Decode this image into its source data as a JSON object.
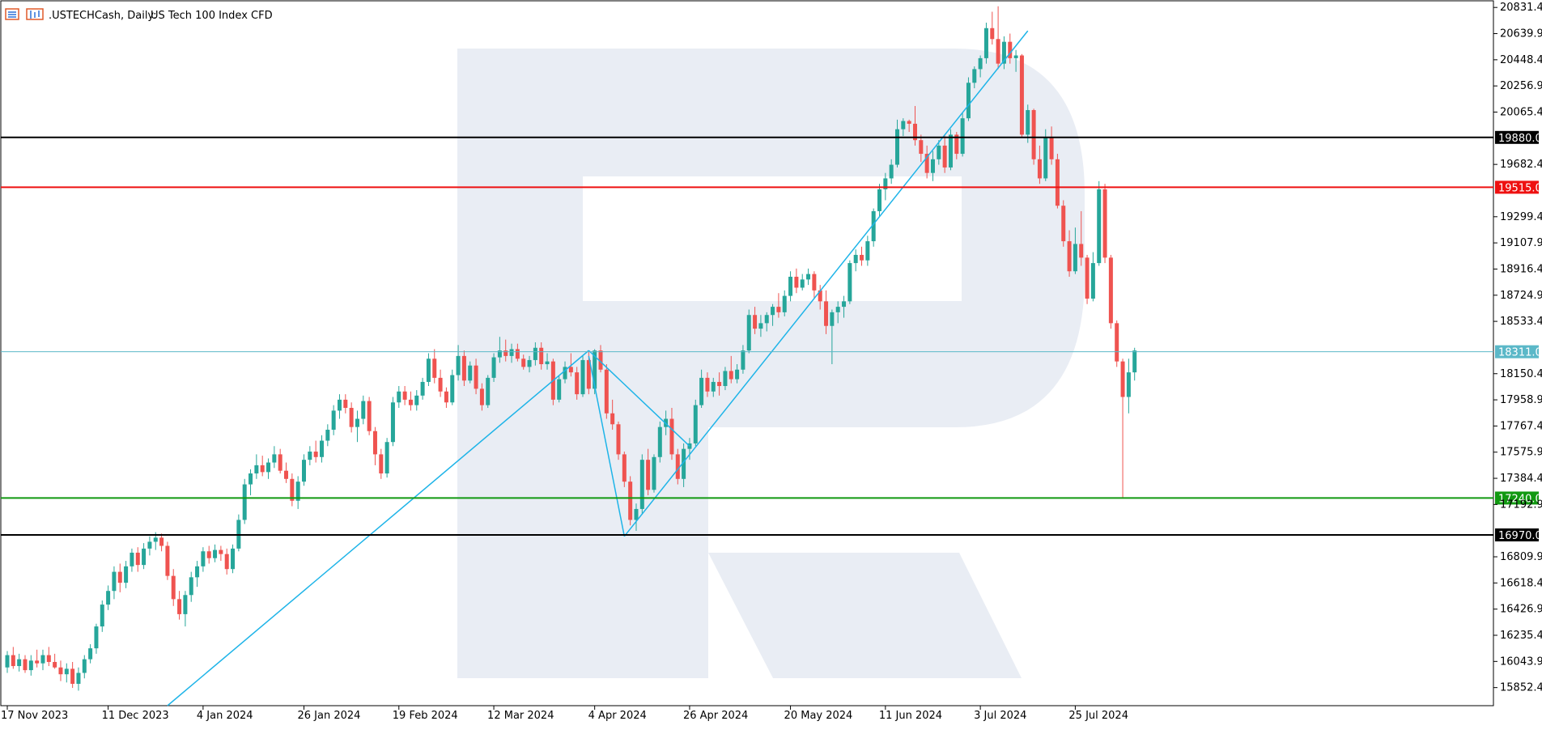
{
  "header": {
    "symbol": ".USTECHCash, Daily:",
    "description": "US Tech 100 Index CFD"
  },
  "chart_data": {
    "type": "candlestick",
    "title": ".USTECHCash, Daily:",
    "subtitle": "US Tech 100 Index CFD",
    "y_range": [
      15720,
      20880
    ],
    "y_ticks": [
      20831.4,
      20639.9,
      20448.4,
      20256.9,
      20065.4,
      19682.4,
      19299.4,
      19107.9,
      18916.4,
      18724.9,
      18533.4,
      18150.4,
      17958.9,
      17767.4,
      17575.9,
      17384.4,
      17192.9,
      16809.9,
      16618.4,
      16426.9,
      16235.4,
      16043.9,
      15852.4
    ],
    "x_labels": [
      {
        "label": "17 Nov 2023",
        "bar": 0
      },
      {
        "label": "11 Dec 2023",
        "bar": 17
      },
      {
        "label": "4 Jan 2024",
        "bar": 33
      },
      {
        "label": "26 Jan 2024",
        "bar": 50
      },
      {
        "label": "19 Feb 2024",
        "bar": 66
      },
      {
        "label": "12 Mar 2024",
        "bar": 82
      },
      {
        "label": "4 Apr 2024",
        "bar": 99
      },
      {
        "label": "26 Apr 2024",
        "bar": 115
      },
      {
        "label": "20 May 2024",
        "bar": 132
      },
      {
        "label": "11 Jun 2024",
        "bar": 148
      },
      {
        "label": "3 Jul 2024",
        "bar": 164
      },
      {
        "label": "25 Jul 2024",
        "bar": 180
      }
    ],
    "levels": [
      {
        "label": "19880.0",
        "value": 19880.0,
        "color": "#000000"
      },
      {
        "label": "19515.0",
        "value": 19515.0,
        "color": "#ee1111"
      },
      {
        "label": "18311.0",
        "value": 18311.0,
        "color": "#5bb8c8"
      },
      {
        "label": "17240.0",
        "value": 17240.0,
        "color": "#119911"
      },
      {
        "label": "16970.0",
        "value": 16970.0,
        "color": "#000000"
      }
    ],
    "trendlines": [
      {
        "from": [
          27,
          15720
        ],
        "to": [
          98,
          18320
        ]
      },
      {
        "from": [
          98,
          18320
        ],
        "to": [
          115,
          17620
        ]
      },
      {
        "from": [
          104,
          16960
        ],
        "to": [
          172,
          20660
        ]
      },
      {
        "from": [
          98,
          18280
        ],
        "to": [
          104,
          16960
        ]
      }
    ],
    "colors": {
      "bull": "#26a69a",
      "bear": "#ef5350",
      "trend": "#1eb4e8",
      "watermark": "#e9edf4"
    },
    "ohlc": [
      [
        16000,
        16120,
        15960,
        16090
      ],
      [
        16090,
        16150,
        15990,
        16010
      ],
      [
        16010,
        16100,
        15970,
        16060
      ],
      [
        16060,
        16090,
        15960,
        15980
      ],
      [
        15980,
        16090,
        15940,
        16050
      ],
      [
        16050,
        16130,
        16000,
        16030
      ],
      [
        16030,
        16130,
        15980,
        16090
      ],
      [
        16090,
        16150,
        16010,
        16040
      ],
      [
        16040,
        16100,
        15990,
        16000
      ],
      [
        16000,
        16050,
        15900,
        15950
      ],
      [
        15950,
        16030,
        15890,
        15990
      ],
      [
        15990,
        16040,
        15850,
        15880
      ],
      [
        15880,
        16000,
        15830,
        15960
      ],
      [
        15960,
        16090,
        15920,
        16060
      ],
      [
        16060,
        16170,
        16030,
        16140
      ],
      [
        16140,
        16320,
        16100,
        16300
      ],
      [
        16300,
        16490,
        16260,
        16460
      ],
      [
        16460,
        16600,
        16420,
        16560
      ],
      [
        16560,
        16740,
        16500,
        16700
      ],
      [
        16700,
        16760,
        16550,
        16620
      ],
      [
        16620,
        16780,
        16580,
        16740
      ],
      [
        16740,
        16870,
        16700,
        16840
      ],
      [
        16840,
        16880,
        16700,
        16750
      ],
      [
        16750,
        16910,
        16720,
        16870
      ],
      [
        16870,
        16960,
        16820,
        16920
      ],
      [
        16920,
        16990,
        16860,
        16950
      ],
      [
        16950,
        16980,
        16850,
        16890
      ],
      [
        16890,
        16920,
        16640,
        16670
      ],
      [
        16670,
        16720,
        16450,
        16500
      ],
      [
        16500,
        16560,
        16350,
        16390
      ],
      [
        16390,
        16560,
        16300,
        16530
      ],
      [
        16530,
        16700,
        16480,
        16660
      ],
      [
        16660,
        16780,
        16590,
        16740
      ],
      [
        16740,
        16880,
        16700,
        16850
      ],
      [
        16850,
        16890,
        16760,
        16800
      ],
      [
        16800,
        16900,
        16770,
        16860
      ],
      [
        16860,
        16890,
        16780,
        16830
      ],
      [
        16830,
        16870,
        16680,
        16720
      ],
      [
        16720,
        16900,
        16690,
        16870
      ],
      [
        16870,
        17120,
        16850,
        17080
      ],
      [
        17080,
        17380,
        17050,
        17340
      ],
      [
        17340,
        17450,
        17260,
        17420
      ],
      [
        17420,
        17560,
        17380,
        17480
      ],
      [
        17480,
        17550,
        17400,
        17430
      ],
      [
        17430,
        17530,
        17380,
        17500
      ],
      [
        17500,
        17620,
        17460,
        17560
      ],
      [
        17560,
        17600,
        17420,
        17440
      ],
      [
        17440,
        17500,
        17350,
        17380
      ],
      [
        17380,
        17420,
        17180,
        17220
      ],
      [
        17220,
        17400,
        17160,
        17360
      ],
      [
        17360,
        17560,
        17330,
        17520
      ],
      [
        17520,
        17620,
        17480,
        17580
      ],
      [
        17580,
        17660,
        17500,
        17540
      ],
      [
        17540,
        17700,
        17500,
        17660
      ],
      [
        17660,
        17780,
        17620,
        17740
      ],
      [
        17740,
        17920,
        17700,
        17880
      ],
      [
        17880,
        18000,
        17820,
        17960
      ],
      [
        17960,
        18000,
        17860,
        17900
      ],
      [
        17900,
        17940,
        17720,
        17760
      ],
      [
        17760,
        17880,
        17650,
        17820
      ],
      [
        17820,
        17990,
        17780,
        17950
      ],
      [
        17950,
        17980,
        17700,
        17730
      ],
      [
        17730,
        17760,
        17480,
        17560
      ],
      [
        17560,
        17600,
        17380,
        17420
      ],
      [
        17420,
        17680,
        17390,
        17650
      ],
      [
        17650,
        17980,
        17620,
        17940
      ],
      [
        17940,
        18060,
        17900,
        18020
      ],
      [
        18020,
        18060,
        17920,
        17960
      ],
      [
        17960,
        18020,
        17880,
        17920
      ],
      [
        17920,
        18030,
        17880,
        17990
      ],
      [
        17990,
        18120,
        17960,
        18090
      ],
      [
        18090,
        18300,
        18060,
        18260
      ],
      [
        18260,
        18330,
        18080,
        18120
      ],
      [
        18120,
        18180,
        17980,
        18020
      ],
      [
        18020,
        18050,
        17900,
        17940
      ],
      [
        17940,
        18180,
        17920,
        18140
      ],
      [
        18140,
        18360,
        18100,
        18280
      ],
      [
        18280,
        18320,
        18060,
        18100
      ],
      [
        18100,
        18240,
        18080,
        18210
      ],
      [
        18210,
        18260,
        18000,
        18040
      ],
      [
        18040,
        18080,
        17880,
        17920
      ],
      [
        17920,
        18140,
        17900,
        18120
      ],
      [
        18120,
        18300,
        18090,
        18270
      ],
      [
        18270,
        18420,
        18230,
        18320
      ],
      [
        18320,
        18400,
        18240,
        18280
      ],
      [
        18280,
        18370,
        18230,
        18330
      ],
      [
        18330,
        18370,
        18240,
        18260
      ],
      [
        18260,
        18290,
        18180,
        18200
      ],
      [
        18200,
        18280,
        18160,
        18250
      ],
      [
        18250,
        18380,
        18210,
        18340
      ],
      [
        18340,
        18380,
        18180,
        18220
      ],
      [
        18220,
        18300,
        18180,
        18240
      ],
      [
        18240,
        18260,
        17920,
        17960
      ],
      [
        17960,
        18140,
        17940,
        18110
      ],
      [
        18110,
        18240,
        18080,
        18200
      ],
      [
        18200,
        18300,
        18130,
        18160
      ],
      [
        18160,
        18200,
        17960,
        18000
      ],
      [
        18000,
        18280,
        17980,
        18250
      ],
      [
        18250,
        18320,
        18000,
        18040
      ],
      [
        18040,
        18330,
        18000,
        18320
      ],
      [
        18320,
        18360,
        18160,
        18180
      ],
      [
        18180,
        18220,
        17820,
        17860
      ],
      [
        17860,
        17960,
        17740,
        17780
      ],
      [
        17780,
        17800,
        17520,
        17560
      ],
      [
        17560,
        17580,
        17320,
        17360
      ],
      [
        17360,
        17400,
        17040,
        17080
      ],
      [
        17080,
        17200,
        17000,
        17160
      ],
      [
        17160,
        17560,
        17120,
        17520
      ],
      [
        17520,
        17600,
        17260,
        17300
      ],
      [
        17300,
        17560,
        17280,
        17540
      ],
      [
        17540,
        17800,
        17500,
        17760
      ],
      [
        17760,
        17880,
        17700,
        17820
      ],
      [
        17820,
        17900,
        17520,
        17560
      ],
      [
        17560,
        17600,
        17340,
        17380
      ],
      [
        17380,
        17640,
        17320,
        17600
      ],
      [
        17600,
        17680,
        17520,
        17640
      ],
      [
        17640,
        17960,
        17620,
        17920
      ],
      [
        17920,
        18180,
        17900,
        18120
      ],
      [
        18120,
        18160,
        17980,
        18020
      ],
      [
        18020,
        18120,
        17980,
        18090
      ],
      [
        18090,
        18160,
        17990,
        18060
      ],
      [
        18060,
        18200,
        18030,
        18170
      ],
      [
        18170,
        18280,
        18080,
        18110
      ],
      [
        18110,
        18220,
        18080,
        18180
      ],
      [
        18180,
        18360,
        18150,
        18320
      ],
      [
        18320,
        18620,
        18300,
        18580
      ],
      [
        18580,
        18640,
        18440,
        18480
      ],
      [
        18480,
        18580,
        18420,
        18520
      ],
      [
        18520,
        18600,
        18460,
        18580
      ],
      [
        18580,
        18660,
        18500,
        18640
      ],
      [
        18640,
        18740,
        18560,
        18600
      ],
      [
        18600,
        18760,
        18570,
        18720
      ],
      [
        18720,
        18900,
        18680,
        18860
      ],
      [
        18860,
        18920,
        18740,
        18780
      ],
      [
        18780,
        18880,
        18760,
        18840
      ],
      [
        18840,
        18920,
        18800,
        18880
      ],
      [
        18880,
        18900,
        18700,
        18760
      ],
      [
        18760,
        18800,
        18620,
        18680
      ],
      [
        18680,
        18760,
        18440,
        18500
      ],
      [
        18500,
        18620,
        18220,
        18600
      ],
      [
        18600,
        18680,
        18520,
        18640
      ],
      [
        18640,
        18720,
        18560,
        18680
      ],
      [
        18680,
        18980,
        18660,
        18960
      ],
      [
        18960,
        19060,
        18900,
        19020
      ],
      [
        19020,
        19080,
        18940,
        18980
      ],
      [
        18980,
        19160,
        18940,
        19120
      ],
      [
        19120,
        19360,
        19080,
        19340
      ],
      [
        19340,
        19540,
        19300,
        19500
      ],
      [
        19500,
        19620,
        19420,
        19580
      ],
      [
        19580,
        19720,
        19540,
        19680
      ],
      [
        19680,
        20010,
        19660,
        19940
      ],
      [
        19940,
        20020,
        19890,
        20000
      ],
      [
        20000,
        20010,
        19920,
        19980
      ],
      [
        19980,
        20110,
        19820,
        19860
      ],
      [
        19860,
        19900,
        19700,
        19760
      ],
      [
        19760,
        19820,
        19580,
        19620
      ],
      [
        19620,
        19780,
        19560,
        19720
      ],
      [
        19720,
        19860,
        19680,
        19820
      ],
      [
        19820,
        19900,
        19620,
        19660
      ],
      [
        19660,
        19940,
        19640,
        19900
      ],
      [
        19900,
        19920,
        19720,
        19760
      ],
      [
        19760,
        20060,
        19740,
        20020
      ],
      [
        20020,
        20320,
        20000,
        20280
      ],
      [
        20280,
        20400,
        20240,
        20380
      ],
      [
        20380,
        20480,
        20320,
        20460
      ],
      [
        20460,
        20720,
        20420,
        20680
      ],
      [
        20680,
        20800,
        20560,
        20600
      ],
      [
        20600,
        20840,
        20380,
        20420
      ],
      [
        20420,
        20620,
        20380,
        20580
      ],
      [
        20580,
        20640,
        20420,
        20460
      ],
      [
        20460,
        20520,
        20360,
        20480
      ],
      [
        20480,
        20490,
        19880,
        19900
      ],
      [
        19900,
        20120,
        19840,
        20080
      ],
      [
        20080,
        20090,
        19680,
        19720
      ],
      [
        19720,
        19820,
        19540,
        19580
      ],
      [
        19580,
        19940,
        19560,
        19880
      ],
      [
        19880,
        19960,
        19680,
        19720
      ],
      [
        19720,
        19760,
        19360,
        19380
      ],
      [
        19380,
        19420,
        19080,
        19120
      ],
      [
        19120,
        19200,
        18860,
        18900
      ],
      [
        18900,
        19220,
        18880,
        19100
      ],
      [
        19100,
        19340,
        18940,
        19000
      ],
      [
        19000,
        19020,
        18660,
        18700
      ],
      [
        18700,
        19040,
        18680,
        18960
      ],
      [
        18960,
        19560,
        18940,
        19500
      ],
      [
        19500,
        19540,
        18960,
        19000
      ],
      [
        19000,
        19020,
        18480,
        18520
      ],
      [
        18520,
        18540,
        18200,
        18240
      ],
      [
        18240,
        18260,
        17240,
        17980
      ],
      [
        17980,
        18260,
        17860,
        18160
      ],
      [
        18160,
        18340,
        18100,
        18320
      ]
    ]
  }
}
